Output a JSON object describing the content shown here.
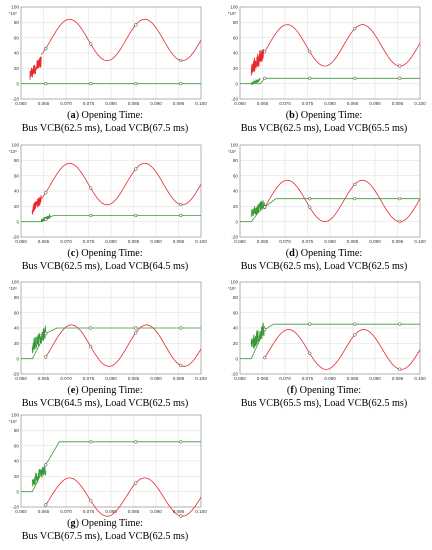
{
  "chart_data": [
    {
      "type": "line",
      "panel_letter": "a",
      "caption_line1": "Opening Time:",
      "caption_line2": "Bus VCB(62.5 ms), Load VCB(67.5 ms)",
      "x_ticks": [
        "0.060",
        "0.065",
        "0.070",
        "0.075",
        "0.080",
        "0.085",
        "0.090",
        "0.095",
        "0.100"
      ],
      "y_ticks": [
        "100",
        "80",
        "60",
        "40",
        "20",
        "0",
        "-20"
      ],
      "y_multiplier": "*10³",
      "xlim": [
        0.06,
        0.1
      ],
      "ylim": [
        -20,
        100
      ],
      "grid": true,
      "series": [
        {
          "color": "#e8292e",
          "sine": {
            "mean": 57,
            "amp": 27,
            "period": 0.0167,
            "peak_at": 0.0708
          },
          "start": 0.0645,
          "transient": {
            "from": 0.062,
            "to": 0.0645,
            "low": 12,
            "high": 30
          },
          "markers": [
            0.0655,
            0.0755,
            0.0855,
            0.0955
          ]
        },
        {
          "color": "#3a9a3a",
          "steps": [
            [
              0.06,
              0
            ],
            [
              0.1,
              0
            ]
          ],
          "markers": [
            0.0655,
            0.0755,
            0.0855,
            0.0955
          ]
        }
      ]
    },
    {
      "type": "line",
      "panel_letter": "b",
      "caption_line1": "Opening Time:",
      "caption_line2": "Bus VCB(62.5 ms), Load VCB(65.5 ms)",
      "x_ticks": [
        "0.060",
        "0.065",
        "0.070",
        "0.075",
        "0.080",
        "0.085",
        "0.090",
        "0.095",
        "0.100"
      ],
      "y_ticks": [
        "100",
        "80",
        "60",
        "40",
        "20",
        "0",
        "-20"
      ],
      "y_multiplier": "*10³",
      "xlim": [
        0.06,
        0.1
      ],
      "ylim": [
        -20,
        100
      ],
      "grid": true,
      "series": [
        {
          "color": "#e8292e",
          "sine": {
            "mean": 50,
            "amp": 27,
            "period": 0.0167,
            "peak_at": 0.0705
          },
          "start": 0.0652,
          "transient": {
            "from": 0.0625,
            "to": 0.0652,
            "low": 18,
            "high": 40
          },
          "markers": [
            0.0655,
            0.0755,
            0.0855,
            0.0955
          ]
        },
        {
          "color": "#3a9a3a",
          "steps": [
            [
              0.06,
              0
            ],
            [
              0.0645,
              0
            ],
            [
              0.0655,
              7
            ],
            [
              0.1,
              7
            ]
          ],
          "transient": {
            "from": 0.0625,
            "to": 0.0645,
            "low": 0,
            "high": 5
          },
          "markers": [
            0.0655,
            0.0755,
            0.0855,
            0.0955
          ]
        }
      ]
    },
    {
      "type": "line",
      "panel_letter": "c",
      "caption_line1": "Opening Time:",
      "caption_line2": "Bus VCB(62.5 ms), Load VCB(64.5 ms)",
      "x_ticks": [
        "0.060",
        "0.065",
        "0.070",
        "0.075",
        "0.080",
        "0.085",
        "0.090",
        "0.095",
        "0.100"
      ],
      "y_ticks": [
        "100",
        "80",
        "60",
        "40",
        "20",
        "0",
        "-20"
      ],
      "y_multiplier": "*10³",
      "xlim": [
        0.06,
        0.1
      ],
      "ylim": [
        -20,
        100
      ],
      "grid": true,
      "series": [
        {
          "color": "#e8292e",
          "sine": {
            "mean": 49,
            "amp": 27,
            "period": 0.0167,
            "peak_at": 0.0708
          },
          "start": 0.0645,
          "transient": {
            "from": 0.0625,
            "to": 0.0645,
            "low": 15,
            "high": 30
          },
          "markers": [
            0.0655,
            0.0755,
            0.0855,
            0.0955
          ]
        },
        {
          "color": "#3a9a3a",
          "steps": [
            [
              0.06,
              0
            ],
            [
              0.0645,
              0
            ],
            [
              0.0672,
              8
            ],
            [
              0.1,
              8
            ]
          ],
          "transient": {
            "from": 0.0645,
            "to": 0.0665,
            "low": 1,
            "high": 7
          },
          "markers": [
            0.0655,
            0.0755,
            0.0855,
            0.0955
          ]
        }
      ]
    },
    {
      "type": "line",
      "panel_letter": "d",
      "caption_line1": "Opening Time:",
      "caption_line2": "Bus VCB(62.5 ms), Load VCB(62.5 ms)",
      "x_ticks": [
        "0.060",
        "0.065",
        "0.070",
        "0.075",
        "0.080",
        "0.085",
        "0.090",
        "0.095",
        "0.100"
      ],
      "y_ticks": [
        "100",
        "80",
        "60",
        "40",
        "20",
        "0",
        "-20"
      ],
      "y_multiplier": "*10³",
      "xlim": [
        0.06,
        0.1
      ],
      "ylim": [
        -20,
        100
      ],
      "grid": true,
      "series": [
        {
          "color": "#e8292e",
          "sine": {
            "mean": 27,
            "amp": 27,
            "period": 0.0167,
            "peak_at": 0.0705
          },
          "start": 0.0655,
          "transient": null,
          "markers": [
            0.0655,
            0.0755,
            0.0855,
            0.0955
          ]
        },
        {
          "color": "#3a9a3a",
          "steps": [
            [
              0.06,
              0
            ],
            [
              0.0625,
              0
            ],
            [
              0.0645,
              15
            ],
            [
              0.068,
              30
            ],
            [
              0.1,
              30
            ]
          ],
          "transient": {
            "from": 0.0625,
            "to": 0.0655,
            "low": 10,
            "high": 25
          },
          "markers": [
            0.0655,
            0.0755,
            0.0855,
            0.0955
          ]
        }
      ]
    },
    {
      "type": "line",
      "panel_letter": "e",
      "caption_line1": "Opening Time:",
      "caption_line2": "Bus VCB(64.5 ms), Load VCB(62.5 ms)",
      "x_ticks": [
        "0.060",
        "0.065",
        "0.070",
        "0.075",
        "0.080",
        "0.085",
        "0.090",
        "0.095",
        "0.100"
      ],
      "y_ticks": [
        "100",
        "80",
        "60",
        "40",
        "20",
        "0",
        "-20"
      ],
      "y_multiplier": "*10³",
      "xlim": [
        0.06,
        0.1
      ],
      "ylim": [
        -20,
        100
      ],
      "grid": true,
      "series": [
        {
          "color": "#e8292e",
          "sine": {
            "mean": 17,
            "amp": 27,
            "period": 0.0167,
            "peak_at": 0.0712
          },
          "start": 0.0655,
          "transient": null,
          "markers": [
            0.0655,
            0.0755,
            0.0855,
            0.0955
          ]
        },
        {
          "color": "#3a9a3a",
          "steps": [
            [
              0.06,
              0
            ],
            [
              0.0625,
              0
            ],
            [
              0.0655,
              33
            ],
            [
              0.068,
              40
            ],
            [
              0.1,
              40
            ]
          ],
          "transient": {
            "from": 0.0625,
            "to": 0.0655,
            "low": 15,
            "high": 35
          },
          "markers": [
            0.0655,
            0.0755,
            0.0855,
            0.0955
          ]
        }
      ]
    },
    {
      "type": "line",
      "panel_letter": "f",
      "caption_line1": "Opening Time:",
      "caption_line2": "Bus VCB(65.5 ms), Load VCB(62.5 ms)",
      "x_ticks": [
        "0.060",
        "0.065",
        "0.070",
        "0.075",
        "0.080",
        "0.085",
        "0.090",
        "0.095",
        "0.100"
      ],
      "y_ticks": [
        "100",
        "80",
        "60",
        "40",
        "20",
        "0",
        "-20"
      ],
      "y_multiplier": "*10³",
      "xlim": [
        0.06,
        0.1
      ],
      "ylim": [
        -20,
        100
      ],
      "grid": true,
      "series": [
        {
          "color": "#e8292e",
          "sine": {
            "mean": 12,
            "amp": 26,
            "period": 0.0167,
            "peak_at": 0.0708
          },
          "start": 0.0655,
          "transient": null,
          "markers": [
            0.0655,
            0.0755,
            0.0855,
            0.0955
          ]
        },
        {
          "color": "#3a9a3a",
          "steps": [
            [
              0.06,
              0
            ],
            [
              0.0625,
              0
            ],
            [
              0.0655,
              38
            ],
            [
              0.0675,
              45
            ],
            [
              0.1,
              45
            ]
          ],
          "transient": {
            "from": 0.0625,
            "to": 0.0655,
            "low": 18,
            "high": 40
          },
          "markers": [
            0.0655,
            0.0755,
            0.0855,
            0.0955
          ]
        }
      ]
    },
    {
      "type": "line",
      "panel_letter": "g",
      "caption_line1": "Opening Time:",
      "caption_line2": "Bus VCB(67.5 ms), Load VCB(62.5 ms)",
      "x_ticks": [
        "0.060",
        "0.065",
        "0.070",
        "0.075",
        "0.080",
        "0.085",
        "0.090",
        "0.095",
        "0.100"
      ],
      "y_ticks": [
        "100",
        "80",
        "60",
        "40",
        "20",
        "0",
        "-20"
      ],
      "y_multiplier": "*10³",
      "xlim": [
        0.06,
        0.1
      ],
      "ylim": [
        -20,
        100
      ],
      "grid": true,
      "series": [
        {
          "color": "#e8292e",
          "sine": {
            "mean": -7,
            "amp": 25,
            "period": 0.0167,
            "peak_at": 0.0708
          },
          "start": 0.0655,
          "transient": null,
          "markers": [
            0.0655,
            0.0755,
            0.0855,
            0.0955
          ]
        },
        {
          "color": "#3a9a3a",
          "steps": [
            [
              0.06,
              0
            ],
            [
              0.0625,
              0
            ],
            [
              0.0655,
              35
            ],
            [
              0.0685,
              65
            ],
            [
              0.1,
              65
            ]
          ],
          "transient": {
            "from": 0.0625,
            "to": 0.0655,
            "low": 12,
            "high": 30
          },
          "markers": [
            0.0655,
            0.0755,
            0.0855,
            0.0955
          ]
        }
      ]
    }
  ]
}
